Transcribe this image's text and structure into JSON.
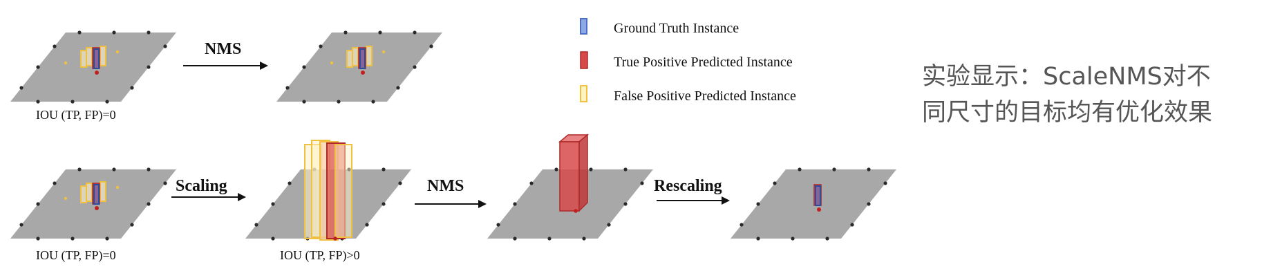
{
  "legend": {
    "ground_truth": "Ground Truth Instance",
    "true_positive": "True Positive Predicted Instance",
    "false_positive": "False Positive Predicted Instance"
  },
  "arrows": {
    "nms_top": "NMS",
    "scaling": "Scaling",
    "nms_bottom": "NMS",
    "rescaling": "Rescaling"
  },
  "captions": {
    "top_left": "IOU (TP, FP)=0",
    "bottom_left": "IOU (TP, FP)=0",
    "bottom_scaled": "IOU (TP, FP)>0"
  },
  "note": {
    "line1": "实验显示：ScaleNMS对不",
    "line2": "同尺寸的目标均有优化效果"
  },
  "colors": {
    "plane": "#a8a8a8",
    "ground_truth": "#4a6fc4",
    "true_positive": "#d84a4a",
    "false_positive": "#f0c040"
  }
}
